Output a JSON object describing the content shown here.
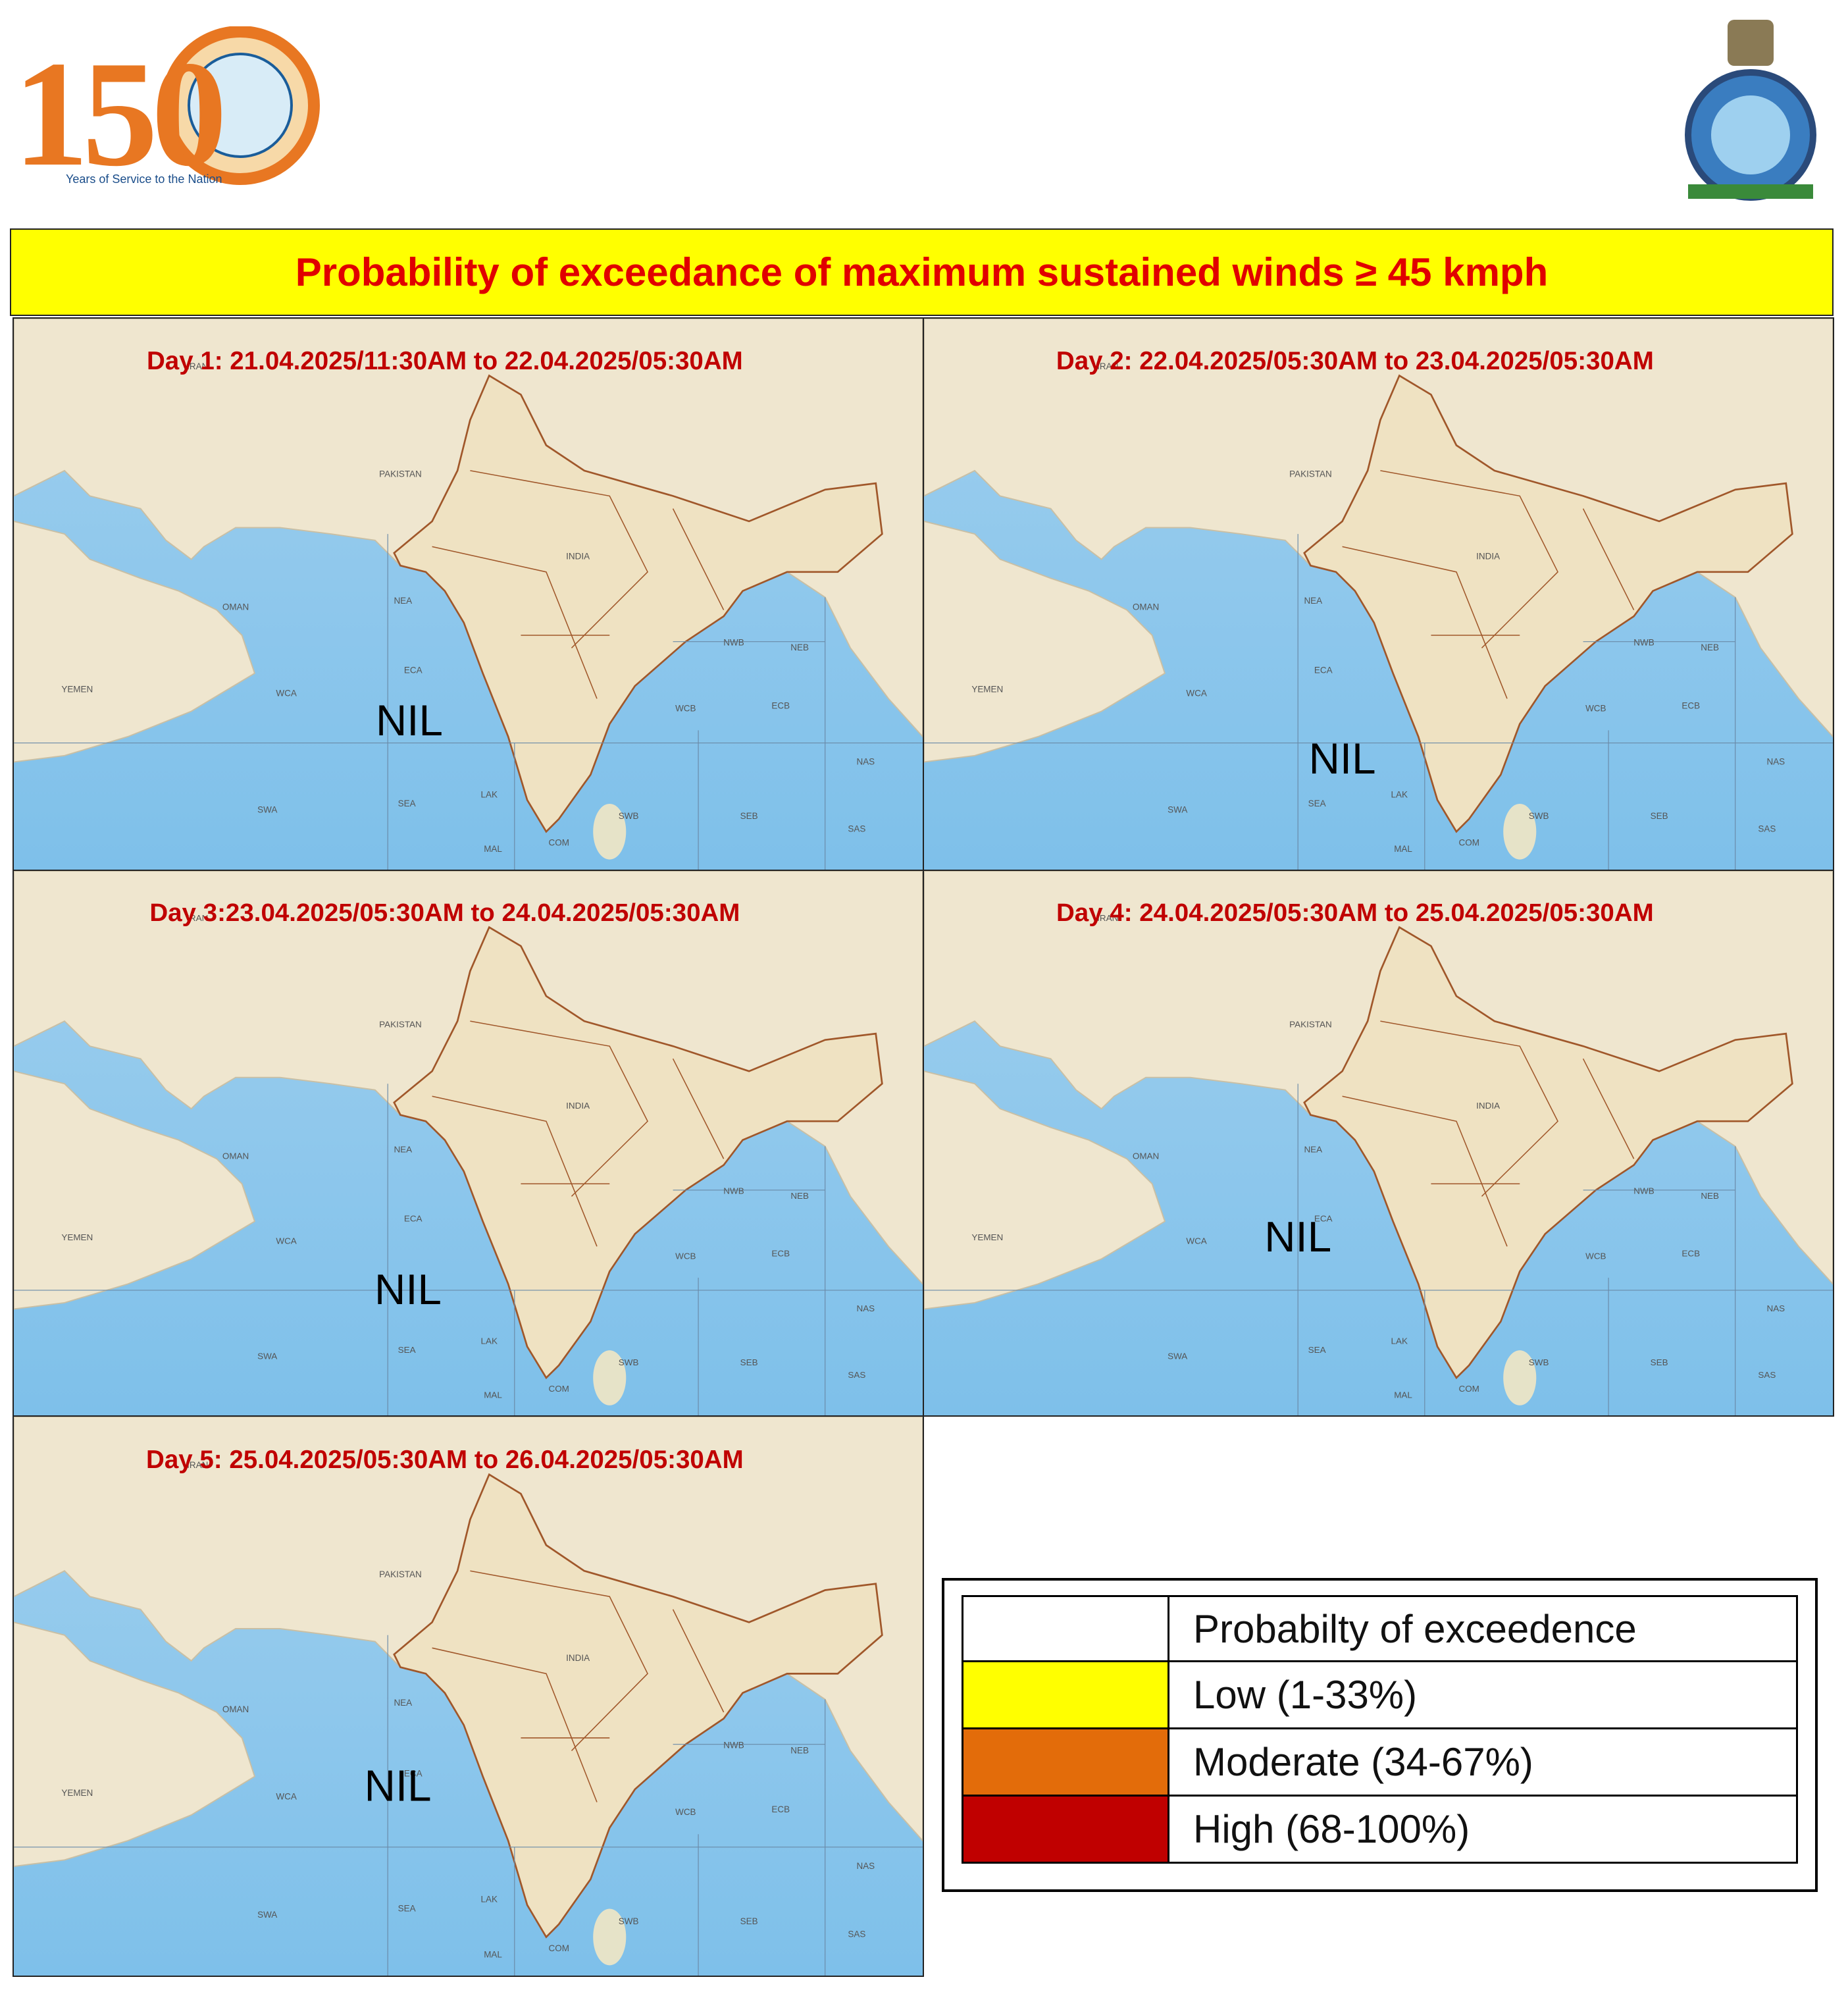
{
  "header": {
    "logo_number": "150",
    "logo_tagline": "Years of Service to the Nation"
  },
  "title": "Probability  of exceedance of maximum sustained winds ≥ 45 kmph",
  "panels": [
    {
      "title": "Day 1: 21.04.2025/11:30AM to 22.04.2025/05:30AM",
      "status": "NIL"
    },
    {
      "title": "Day 2: 22.04.2025/05:30AM to 23.04.2025/05:30AM",
      "status": "NIL"
    },
    {
      "title": "Day 3:23.04.2025/05:30AM to 24.04.2025/05:30AM",
      "status": "NIL"
    },
    {
      "title": "Day 4: 24.04.2025/05:30AM to 25.04.2025/05:30AM",
      "status": "NIL"
    },
    {
      "title": "Day 5: 25.04.2025/05:30AM to 26.04.2025/05:30AM",
      "status": "NIL"
    }
  ],
  "map_labels": [
    "IRAN",
    "PAKISTAN",
    "INDIA",
    "OMAN",
    "YEMEN",
    "NEA",
    "ECA",
    "WCA",
    "SWA",
    "SEA",
    "LAK",
    "MAL",
    "COM",
    "SWB",
    "SEB",
    "WCB",
    "ECB",
    "NWB",
    "NEB",
    "NAS",
    "SAS"
  ],
  "legend": {
    "header": "Probabilty of exceedence",
    "rows": [
      {
        "label": "Low (1-33%)",
        "color": "#ffff00"
      },
      {
        "label": "Moderate (34-67%)",
        "color": "#e36c0a"
      },
      {
        "label": "High (68-100%)",
        "color": "#c00000"
      }
    ]
  }
}
